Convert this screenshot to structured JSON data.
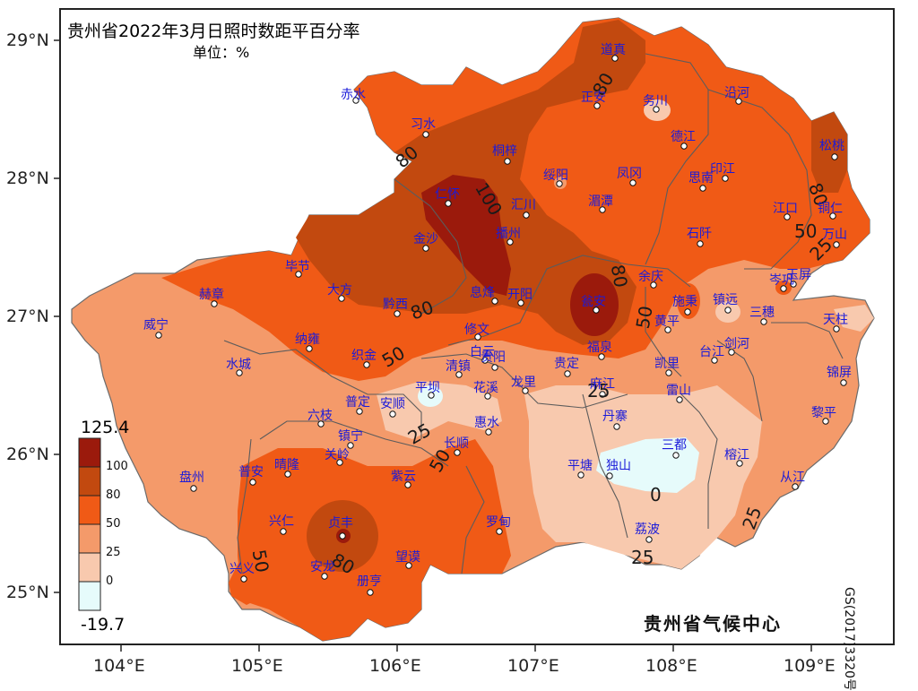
{
  "title": "贵州省2022年3月日照时数距平百分率",
  "unit": "单位：%",
  "agency": "贵州省气候中心",
  "map_number": "GS(2017)3320号",
  "lat_labels": [
    "29°N",
    "28°N",
    "27°N",
    "26°N",
    "25°N"
  ],
  "lon_labels": [
    "104°E",
    "105°E",
    "106°E",
    "107°E",
    "108°E",
    "109°E"
  ],
  "legend": {
    "max": "125.4",
    "min": "-19.7",
    "ticks": [
      "100",
      "80",
      "50",
      "25",
      "0"
    ],
    "colors": [
      "#9b1a0c",
      "#c2490f",
      "#f05a16",
      "#f49a6a",
      "#f8c9ae",
      "#e6fbfb"
    ]
  },
  "contour_labels": [
    "80",
    "80",
    "100",
    "80",
    "50",
    "80",
    "50",
    "80",
    "50",
    "25",
    "25",
    "25",
    "50",
    "0",
    "50",
    "80",
    "25",
    "25"
  ],
  "cities": [
    "道真",
    "正安",
    "务川",
    "沿河",
    "赤水",
    "习水",
    "桐梓",
    "德江",
    "松桃",
    "绥阳",
    "凤冈",
    "思南",
    "印江",
    "仁怀",
    "汇川",
    "湄潭",
    "江口",
    "铜仁",
    "金沙",
    "播州",
    "石阡",
    "万山",
    "毕节",
    "岑巩",
    "玉屏",
    "大方",
    "余庆",
    "施秉",
    "镇远",
    "三穗",
    "赫章",
    "黔西",
    "息烽",
    "开阳",
    "瓮安",
    "黄平",
    "天柱",
    "威宁",
    "修文",
    "白云",
    "福泉",
    "台江",
    "剑河",
    "纳雍",
    "织金",
    "清镇",
    "贵阳",
    "龙里",
    "贵定",
    "凯里",
    "锦屏",
    "水城",
    "平坝",
    "花溪",
    "麻江",
    "雷山",
    "黎平",
    "六枝",
    "普定",
    "安顺",
    "惠水",
    "丹寨",
    "镇宁",
    "长顺",
    "三都",
    "关岭",
    "榕江",
    "从江",
    "盘州",
    "普安",
    "晴隆",
    "紫云",
    "平塘",
    "独山",
    "兴仁",
    "贞丰",
    "罗甸",
    "荔波",
    "安龙",
    "望谟",
    "兴义",
    "册亨"
  ]
}
